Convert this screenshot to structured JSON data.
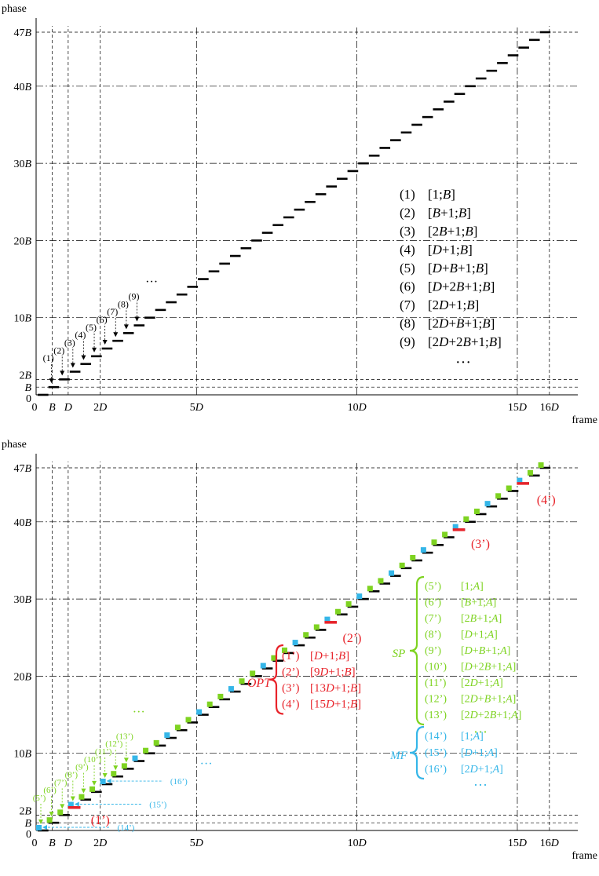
{
  "chart_data": [
    {
      "type": "line",
      "ylabel": "phase",
      "xlabel": "frame",
      "x_ticks": [
        {
          "value": 0,
          "label": "0"
        },
        {
          "value": 1,
          "label": "B"
        },
        {
          "value": 2,
          "label": "D"
        },
        {
          "value": 4,
          "label": "2D"
        },
        {
          "value": 10,
          "label": "5D"
        },
        {
          "value": 20,
          "label": "10D"
        },
        {
          "value": 30,
          "label": "15D"
        },
        {
          "value": 32,
          "label": "16D"
        }
      ],
      "y_ticks": [
        {
          "value": 0,
          "label": "0"
        },
        {
          "value": 1,
          "label": "B"
        },
        {
          "value": 2,
          "label": "2B"
        },
        {
          "value": 10,
          "label": "10B"
        },
        {
          "value": 20,
          "label": "20B"
        },
        {
          "value": 30,
          "label": "30B"
        },
        {
          "value": 40,
          "label": "40B"
        },
        {
          "value": 47,
          "label": "47B"
        }
      ],
      "xlim": [
        0,
        32.4
      ],
      "ylim": [
        0,
        47
      ],
      "series": [
        {
          "values": [
            0,
            1,
            2,
            3,
            4,
            5,
            6,
            7,
            8,
            9,
            10,
            11,
            12,
            13,
            14,
            15,
            16,
            17,
            18,
            19,
            20,
            21,
            22,
            23,
            24,
            25,
            26,
            27,
            28,
            29,
            30,
            31,
            32,
            33,
            34,
            35,
            36,
            37,
            38,
            39,
            40,
            41,
            42,
            43,
            44,
            45,
            46,
            47
          ]
        }
      ],
      "legend": {
        "items": [
          {
            "label": "(1)",
            "text": "[1;B]"
          },
          {
            "label": "(2)",
            "text": "[B+1;B]"
          },
          {
            "label": "(3)",
            "text": "[2B+1;B]"
          },
          {
            "label": "(4)",
            "text": "[D+1;B]"
          },
          {
            "label": "(5)",
            "text": "[D+B+1;B]"
          },
          {
            "label": "(6)",
            "text": "[D+2B+1;B]"
          },
          {
            "label": "(7)",
            "text": "[2D+1;B]"
          },
          {
            "label": "(8)",
            "text": "[2D+B+1;B]"
          },
          {
            "label": "(9)",
            "text": "[2D+2B+1;B]"
          }
        ],
        "more": "…"
      },
      "annotations": {
        "arrow_labels": [
          "(1)",
          "(2)",
          "(3)",
          "(4)",
          "(5)",
          "(6)",
          "(7)",
          "(8)",
          "(9)"
        ],
        "ellipsis": "…"
      }
    },
    {
      "type": "scatter",
      "ylabel": "phase",
      "xlabel": "frame",
      "x_ticks": [
        {
          "value": 0,
          "label": "0"
        },
        {
          "value": 1,
          "label": "B"
        },
        {
          "value": 2,
          "label": "D"
        },
        {
          "value": 4,
          "label": "2D"
        },
        {
          "value": 10,
          "label": "5D"
        },
        {
          "value": 20,
          "label": "10D"
        },
        {
          "value": 30,
          "label": "15D"
        },
        {
          "value": 32,
          "label": "16D"
        }
      ],
      "y_ticks": [
        {
          "value": 0,
          "label": "0"
        },
        {
          "value": 1,
          "label": "B"
        },
        {
          "value": 2,
          "label": "2B"
        },
        {
          "value": 10,
          "label": "10B"
        },
        {
          "value": 20,
          "label": "20B"
        },
        {
          "value": 30,
          "label": "30B"
        },
        {
          "value": 40,
          "label": "40B"
        },
        {
          "value": 47,
          "label": "47B"
        }
      ],
      "xlim": [
        0,
        32.4
      ],
      "ylim": [
        0,
        47
      ],
      "series": [
        {
          "values": [
            0,
            1,
            2,
            3,
            4,
            5,
            6,
            7,
            8,
            9,
            10,
            11,
            12,
            13,
            14,
            15,
            16,
            17,
            18,
            19,
            20,
            21,
            22,
            23,
            24,
            25,
            26,
            27,
            28,
            29,
            30,
            31,
            32,
            33,
            34,
            35,
            36,
            37,
            38,
            39,
            40,
            41,
            42,
            43,
            44,
            45,
            46,
            47
          ]
        }
      ],
      "colors": {
        "opt": "#e8232a",
        "sp": "#7ed321",
        "mf": "#35b6e8",
        "line": "#000000"
      },
      "opt_blocks": [
        3,
        27,
        39,
        45
      ],
      "mf_blocks": [
        0,
        3,
        6,
        9,
        12,
        15,
        18,
        21,
        24,
        27,
        30,
        33,
        36,
        39,
        42,
        45
      ],
      "sp_blocks": [
        1,
        2,
        4,
        5,
        7,
        8,
        10,
        11,
        13,
        14,
        16,
        17,
        19,
        20,
        22,
        23,
        25,
        26,
        28,
        29,
        31,
        32,
        34,
        35,
        37,
        38,
        40,
        41,
        43,
        44,
        46,
        47
      ],
      "opt_group": {
        "title": "OPT",
        "items": [
          {
            "label": "(1’)",
            "text": "[D+1;B]"
          },
          {
            "label": "(2’)",
            "text": "[9D+1;B]"
          },
          {
            "label": "(3’)",
            "text": "[13D+1;B]"
          },
          {
            "label": "(4’)",
            "text": "[15D+1;B]"
          }
        ]
      },
      "sp_group": {
        "title": "SP",
        "items": [
          {
            "label": "(5’)",
            "text": "[1;A]"
          },
          {
            "label": "(6’)",
            "text": "[B+1;A]"
          },
          {
            "label": "(7’)",
            "text": "[2B+1;A]"
          },
          {
            "label": "(8’)",
            "text": "[D+1;A]"
          },
          {
            "label": "(9’)",
            "text": "[D+B+1;A]"
          },
          {
            "label": "(10’)",
            "text": "[D+2B+1;A]"
          },
          {
            "label": "(11’)",
            "text": "[2D+1;A]"
          },
          {
            "label": "(12’)",
            "text": "[2D+B+1;A]"
          },
          {
            "label": "(13’)",
            "text": "[2D+2B+1;A]"
          }
        ],
        "more": "…"
      },
      "mf_group": {
        "title": "MF",
        "items": [
          {
            "label": "(14’)",
            "text": "[1;A]"
          },
          {
            "label": "(15’)",
            "text": "[D+1;A]"
          },
          {
            "label": "(16’)",
            "text": "[2D+1;A]"
          }
        ],
        "more": "…"
      },
      "opt_callouts": [
        "(1’)",
        "(2’)",
        "(3’)",
        "(4’)"
      ],
      "sp_arrow_labels": [
        "(5’)",
        "(6’)",
        "(7’)",
        "(8’)",
        "(9’)",
        "(10’)",
        "(11’)",
        "(12’)",
        "(13’)"
      ],
      "mf_arrow_labels": [
        "(14’)",
        "(15’)",
        "(16’)"
      ],
      "annotations": {
        "sp_ellipsis": "…",
        "mf_ellipsis": "…"
      }
    }
  ]
}
